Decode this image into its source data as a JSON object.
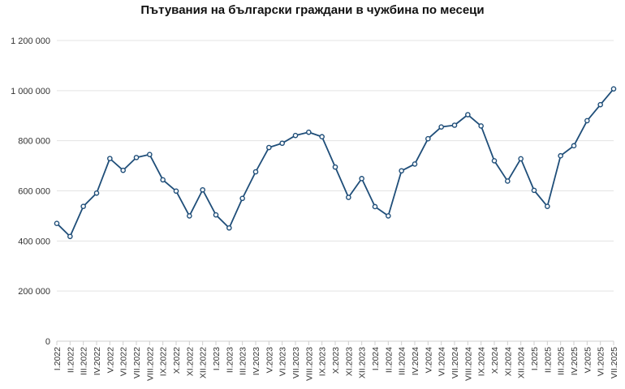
{
  "chart_data": {
    "type": "line",
    "title": "Пътувания на български граждани в чужбина по месеци",
    "xlabel": "",
    "ylabel": "",
    "ylim": [
      0,
      1200000
    ],
    "yticks": [
      {
        "value": 0,
        "label": "0"
      },
      {
        "value": 200000,
        "label": "200 000"
      },
      {
        "value": 400000,
        "label": "400 000"
      },
      {
        "value": 600000,
        "label": "600 000"
      },
      {
        "value": 800000,
        "label": "800 000"
      },
      {
        "value": 1000000,
        "label": "1 000 000"
      },
      {
        "value": 1200000,
        "label": "1 200 000"
      }
    ],
    "grid": true,
    "line_color": "#1f4e79",
    "x": [
      "I.2022",
      "II.2022",
      "III.2022",
      "IV.2022",
      "V.2022",
      "VI.2022",
      "VII.2022",
      "VIII.2022",
      "IX.2022",
      "X.2022",
      "XI.2022",
      "XII.2022",
      "I.2023",
      "II.2023",
      "III.2023",
      "IV.2023",
      "V.2023",
      "VI.2023",
      "VII.2023",
      "VIII.2023",
      "IX.2023",
      "X.2023",
      "XI.2023",
      "XII.2023",
      "I.2024",
      "II.2024",
      "III.2024",
      "IV.2024",
      "V.2024",
      "VI.2024",
      "VII.2024",
      "VIII.2024",
      "IX.2024",
      "X.2024",
      "XI.2024",
      "XII.2024",
      "I.2025",
      "II.2025",
      "III.2025",
      "IV.2025",
      "V.2025",
      "VI.2025",
      "VII.2025"
    ],
    "series": [
      {
        "values": [
          470000,
          418000,
          538000,
          591000,
          729000,
          682000,
          733000,
          745000,
          644000,
          599000,
          500000,
          604000,
          504000,
          452000,
          570000,
          676000,
          773000,
          790000,
          821000,
          834000,
          816000,
          695000,
          574000,
          649000,
          537000,
          500000,
          680000,
          707000,
          808000,
          855000,
          862000,
          904000,
          859000,
          720000,
          639000,
          728000,
          602000,
          538000,
          740000,
          780000,
          880000,
          944000,
          1007000
        ]
      }
    ]
  }
}
